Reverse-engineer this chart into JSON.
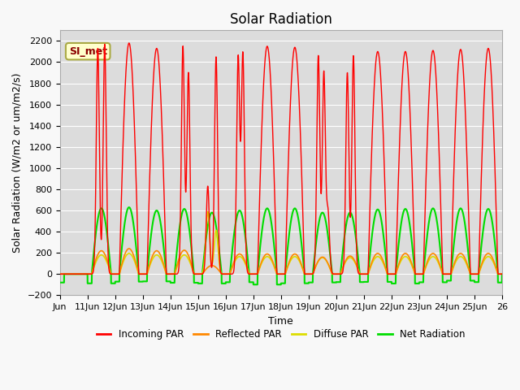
{
  "title": "Solar Radiation",
  "ylabel": "Solar Radiation (W/m2 or um/m2/s)",
  "xlabel": "Time",
  "ylim": [
    -200,
    2300
  ],
  "yticks": [
    -200,
    0,
    200,
    400,
    600,
    800,
    1000,
    1200,
    1400,
    1600,
    1800,
    2000,
    2200
  ],
  "xtick_labels": [
    "Jun",
    "11Jun",
    "12Jun",
    "13Jun",
    "14Jun",
    "15Jun",
    "16Jun",
    "17Jun",
    "18Jun",
    "19Jun",
    "20Jun",
    "21Jun",
    "22Jun",
    "23Jun",
    "24Jun",
    "25Jun",
    "26"
  ],
  "legend_label": "SI_met",
  "colors": {
    "incoming": "#ff0000",
    "reflected": "#ff8800",
    "diffuse": "#dddd00",
    "net": "#00dd00",
    "background": "#dcdcdc",
    "grid": "#ffffff",
    "legend_box_bg": "#ffffcc",
    "legend_box_border": "#aaaa44"
  },
  "line_widths": {
    "incoming": 1.0,
    "reflected": 1.2,
    "diffuse": 1.2,
    "net": 1.5
  },
  "title_fontsize": 12,
  "label_fontsize": 9,
  "tick_fontsize": 8,
  "fig_width": 6.4,
  "fig_height": 4.8,
  "fig_dpi": 100
}
